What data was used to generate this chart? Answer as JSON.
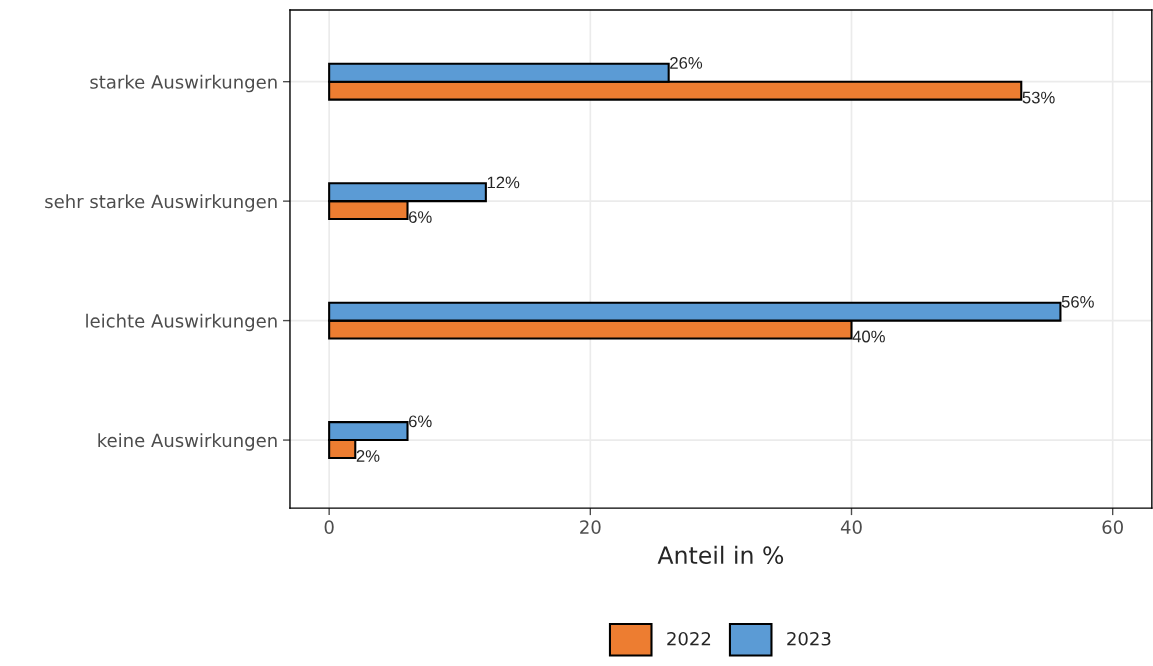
{
  "chart_data": {
    "type": "bar",
    "orientation": "horizontal",
    "categories": [
      "starke Auswirkungen",
      "sehr starke Auswirkungen",
      "leichte Auswirkungen",
      "keine Auswirkungen"
    ],
    "series": [
      {
        "name": "2022",
        "color": "#ed7d31",
        "values": [
          53,
          6,
          40,
          2
        ],
        "value_labels": [
          "53%",
          "6%",
          "40%",
          "2%"
        ]
      },
      {
        "name": "2023",
        "color": "#5b9bd5",
        "values": [
          26,
          12,
          56,
          6
        ],
        "value_labels": [
          "26%",
          "12%",
          "56%",
          "6%"
        ]
      }
    ],
    "xlabel": "Anteil in %",
    "xlim": [
      -3,
      63
    ],
    "xticks": [
      0,
      20,
      40,
      60
    ],
    "grid": true,
    "legend": "bottom"
  }
}
